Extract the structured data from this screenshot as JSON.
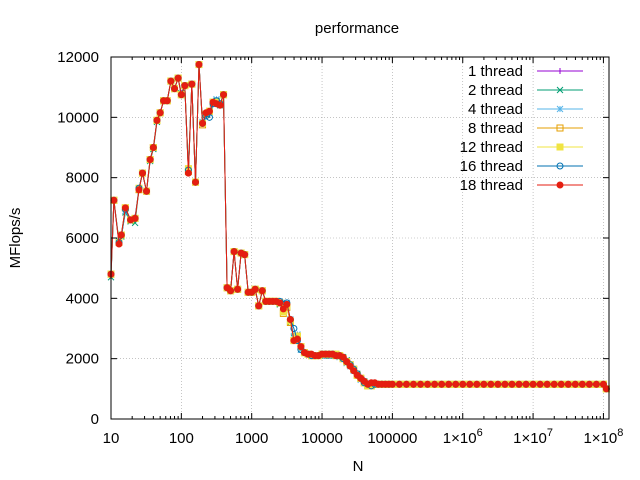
{
  "chart_data": {
    "type": "line",
    "title": "performance",
    "xlabel": "N",
    "ylabel": "MFlops/s",
    "xscale": "log",
    "xlim": [
      10,
      120000000
    ],
    "ylim": [
      0,
      12000
    ],
    "grid": true,
    "legend_position": "top-right",
    "x_ticks": [
      {
        "value": 10,
        "label": "10"
      },
      {
        "value": 100,
        "label": "100"
      },
      {
        "value": 1000,
        "label": "1000"
      },
      {
        "value": 10000,
        "label": "10000"
      },
      {
        "value": 100000,
        "label": "100000"
      },
      {
        "value": 1000000,
        "label": "1×10",
        "sup": "6"
      },
      {
        "value": 10000000,
        "label": "1×10",
        "sup": "7"
      },
      {
        "value": 100000000,
        "label": "1×10",
        "sup": "8"
      }
    ],
    "y_ticks": [
      {
        "value": 0,
        "label": "0"
      },
      {
        "value": 2000,
        "label": "2000"
      },
      {
        "value": 4000,
        "label": "4000"
      },
      {
        "value": 6000,
        "label": "6000"
      },
      {
        "value": 8000,
        "label": "8000"
      },
      {
        "value": 10000,
        "label": "10000"
      },
      {
        "value": 12000,
        "label": "12000"
      }
    ],
    "x": [
      10,
      11,
      13,
      14,
      16,
      19,
      22,
      25,
      28,
      32,
      36,
      40,
      45,
      50,
      56,
      63,
      71,
      80,
      90,
      100,
      112,
      126,
      141,
      159,
      178,
      200,
      224,
      251,
      282,
      316,
      355,
      398,
      447,
      501,
      562,
      631,
      708,
      794,
      891,
      1000,
      1122,
      1259,
      1413,
      1585,
      1778,
      1995,
      2239,
      2512,
      2818,
      3162,
      3548,
      3981,
      4467,
      5012,
      5623,
      6310,
      7079,
      7943,
      8913,
      10000,
      11220,
      12589,
      14125,
      15849,
      17783,
      19953,
      22387,
      25119,
      28184,
      31623,
      35481,
      39811,
      44668,
      50119,
      56234,
      63096,
      70795,
      79433,
      89125,
      100000,
      125893,
      158489,
      199526,
      251189,
      316228,
      398107,
      501187,
      630957,
      794328,
      1000000,
      1258925,
      1584893,
      1995262,
      2511886,
      3162278,
      3981072,
      5011872,
      6309573,
      7943282,
      10000000,
      12589254,
      15848932,
      19952623,
      25118864,
      31622777,
      39810717,
      50118723,
      63095734,
      79432823,
      100000000,
      110000000
    ],
    "series": [
      {
        "name": "1 thread",
        "color": "#9400d3",
        "marker": "plus",
        "values": [
          4750,
          7200,
          5850,
          6000,
          6950,
          6600,
          6700,
          7600,
          8150,
          7550,
          8550,
          9000,
          9900,
          10150,
          10550,
          10550,
          11200,
          10950,
          11300,
          10800,
          11050,
          8200,
          11100,
          7850,
          11750,
          9800,
          10100,
          10200,
          10500,
          10550,
          10450,
          10750,
          4350,
          4250,
          5550,
          4300,
          5500,
          5450,
          4200,
          4200,
          4300,
          3750,
          4250,
          3900,
          3900,
          3900,
          3900,
          3850,
          3650,
          3800,
          3300,
          2600,
          2800,
          2400,
          2200,
          2150,
          2150,
          2100,
          2100,
          2100,
          2100,
          2100,
          2100,
          2100,
          2100,
          2050,
          1950,
          1850,
          1700,
          1500,
          1400,
          1300,
          1200,
          1150,
          1200,
          1150,
          1150,
          1150,
          1150,
          1150,
          1150,
          1150,
          1150,
          1150,
          1150,
          1150,
          1150,
          1150,
          1150,
          1150,
          1150,
          1150,
          1150,
          1150,
          1150,
          1150,
          1150,
          1150,
          1150,
          1150,
          1150,
          1150,
          1150,
          1150,
          1150,
          1150,
          1150,
          1150,
          1150,
          1150,
          1000
        ]
      },
      {
        "name": "2 thread",
        "color": "#009e73",
        "marker": "cross",
        "values": [
          4700,
          7250,
          5900,
          6050,
          6850,
          6550,
          6500,
          7650,
          8150,
          7550,
          8550,
          8950,
          9850,
          10150,
          10550,
          10550,
          11200,
          10950,
          11300,
          10800,
          11050,
          8250,
          11100,
          7850,
          11750,
          9800,
          10100,
          10200,
          10450,
          10550,
          10400,
          10750,
          4350,
          4250,
          5550,
          4300,
          5500,
          5450,
          4200,
          4200,
          4300,
          3750,
          4250,
          3900,
          3900,
          3900,
          3900,
          3800,
          3600,
          3750,
          3200,
          2700,
          2650,
          2300,
          2200,
          2150,
          2100,
          2100,
          2100,
          2100,
          2100,
          2100,
          2100,
          2150,
          2100,
          2050,
          1950,
          1800,
          1650,
          1500,
          1350,
          1250,
          1150,
          1100,
          1150,
          1150,
          1150,
          1150,
          1150,
          1150,
          1150,
          1150,
          1150,
          1150,
          1150,
          1150,
          1150,
          1150,
          1150,
          1150,
          1150,
          1150,
          1150,
          1150,
          1150,
          1150,
          1150,
          1150,
          1150,
          1150,
          1150,
          1150,
          1150,
          1150,
          1150,
          1150,
          1150,
          1150,
          1150,
          1150,
          1000
        ]
      },
      {
        "name": "4 thread",
        "color": "#56b4e9",
        "marker": "star",
        "values": [
          4800,
          7250,
          5850,
          6100,
          6900,
          6600,
          6650,
          7650,
          8150,
          7550,
          8600,
          9000,
          9900,
          10150,
          10550,
          10550,
          11200,
          10950,
          11300,
          10750,
          11050,
          8200,
          11100,
          7850,
          11750,
          9850,
          10100,
          10150,
          10450,
          10600,
          10450,
          10750,
          4350,
          4250,
          5550,
          4300,
          5500,
          5450,
          4200,
          4200,
          4300,
          3750,
          4250,
          3900,
          3900,
          3900,
          3900,
          3850,
          3700,
          3850,
          3300,
          2750,
          2800,
          2300,
          2200,
          2150,
          2100,
          2100,
          2100,
          2100,
          2150,
          2150,
          2100,
          2150,
          2050,
          2000,
          1850,
          1750,
          1600,
          1450,
          1300,
          1200,
          1150,
          1150,
          1150,
          1150,
          1150,
          1150,
          1150,
          1150,
          1150,
          1150,
          1150,
          1150,
          1150,
          1150,
          1150,
          1150,
          1150,
          1150,
          1150,
          1150,
          1150,
          1150,
          1150,
          1150,
          1150,
          1150,
          1150,
          1150,
          1150,
          1150,
          1150,
          1150,
          1150,
          1150,
          1150,
          1150,
          1150,
          1150,
          1000
        ]
      },
      {
        "name": "8 thread",
        "color": "#e69f00",
        "marker": "open-square",
        "values": [
          4800,
          7250,
          5850,
          6100,
          7000,
          6600,
          6650,
          7600,
          8150,
          7550,
          8600,
          9000,
          9900,
          10150,
          10550,
          10550,
          11200,
          10950,
          11300,
          10750,
          11050,
          8200,
          11100,
          7850,
          11750,
          9750,
          10100,
          10200,
          10500,
          10500,
          10450,
          10750,
          4350,
          4250,
          5550,
          4300,
          5500,
          5450,
          4200,
          4200,
          4300,
          3750,
          4250,
          3900,
          3900,
          3900,
          3900,
          3850,
          3500,
          3700,
          3200,
          2600,
          2750,
          2400,
          2200,
          2150,
          2100,
          2100,
          2100,
          2150,
          2150,
          2150,
          2150,
          2100,
          2100,
          2000,
          1900,
          1800,
          1650,
          1450,
          1350,
          1200,
          1100,
          1100,
          1150,
          1150,
          1150,
          1150,
          1150,
          1150,
          1150,
          1150,
          1150,
          1150,
          1150,
          1150,
          1150,
          1150,
          1150,
          1150,
          1150,
          1150,
          1150,
          1150,
          1150,
          1150,
          1150,
          1150,
          1150,
          1150,
          1150,
          1150,
          1150,
          1150,
          1150,
          1150,
          1150,
          1150,
          1150,
          1150,
          1000
        ]
      },
      {
        "name": "12 thread",
        "color": "#f0e442",
        "marker": "filled-square",
        "values": [
          4800,
          7250,
          5850,
          6100,
          7000,
          6600,
          6650,
          7650,
          8150,
          7550,
          8600,
          9000,
          9900,
          10150,
          10550,
          10550,
          11200,
          10950,
          11300,
          10750,
          11050,
          8300,
          11100,
          7850,
          11750,
          9800,
          10100,
          10200,
          10500,
          10500,
          10450,
          10750,
          4350,
          4250,
          5550,
          4300,
          5500,
          5450,
          4200,
          4200,
          4300,
          3750,
          4250,
          3900,
          3900,
          3900,
          3900,
          3850,
          3550,
          3750,
          3250,
          2600,
          2750,
          2400,
          2200,
          2150,
          2100,
          2100,
          2100,
          2150,
          2150,
          2150,
          2150,
          2150,
          2100,
          2000,
          1900,
          1800,
          1650,
          1450,
          1350,
          1200,
          1100,
          1100,
          1150,
          1150,
          1150,
          1150,
          1150,
          1150,
          1150,
          1150,
          1150,
          1150,
          1150,
          1150,
          1150,
          1150,
          1150,
          1150,
          1150,
          1150,
          1150,
          1150,
          1150,
          1150,
          1150,
          1150,
          1150,
          1150,
          1150,
          1150,
          1150,
          1150,
          1150,
          1150,
          1150,
          1150,
          1150,
          1150,
          1000
        ]
      },
      {
        "name": "16 thread",
        "color": "#0072b2",
        "marker": "open-circle",
        "values": [
          4800,
          7250,
          5850,
          6100,
          6950,
          6600,
          6650,
          7650,
          8150,
          7550,
          8600,
          9000,
          9900,
          10150,
          10550,
          10550,
          11200,
          10950,
          11300,
          10750,
          11050,
          8250,
          11100,
          7850,
          11750,
          9800,
          10050,
          10000,
          10450,
          10550,
          10450,
          10750,
          4350,
          4250,
          5550,
          4300,
          5500,
          5450,
          4200,
          4200,
          4300,
          3750,
          4250,
          3900,
          3900,
          3900,
          3900,
          3900,
          3800,
          3850,
          3300,
          3000,
          2600,
          2300,
          2200,
          2150,
          2100,
          2100,
          2100,
          2150,
          2150,
          2150,
          2150,
          2100,
          2100,
          2000,
          1900,
          1800,
          1650,
          1500,
          1350,
          1200,
          1150,
          1100,
          1150,
          1150,
          1150,
          1150,
          1150,
          1150,
          1150,
          1150,
          1150,
          1150,
          1150,
          1150,
          1150,
          1150,
          1150,
          1150,
          1150,
          1150,
          1150,
          1150,
          1150,
          1150,
          1150,
          1150,
          1150,
          1150,
          1150,
          1150,
          1150,
          1150,
          1150,
          1150,
          1150,
          1150,
          1150,
          1150,
          1000
        ]
      },
      {
        "name": "18 thread",
        "color": "#e51e10",
        "marker": "filled-circle",
        "values": [
          4800,
          7250,
          5800,
          6100,
          7000,
          6600,
          6650,
          7600,
          8150,
          7550,
          8600,
          9000,
          9900,
          10150,
          10550,
          10550,
          11200,
          10950,
          11300,
          10750,
          11050,
          8150,
          11100,
          7850,
          11750,
          9800,
          10150,
          10200,
          10500,
          10450,
          10400,
          10750,
          4350,
          4250,
          5550,
          4300,
          5500,
          5450,
          4200,
          4200,
          4300,
          3750,
          4250,
          3900,
          3900,
          3900,
          3900,
          3850,
          3650,
          3800,
          3300,
          2600,
          2650,
          2400,
          2200,
          2150,
          2150,
          2100,
          2100,
          2150,
          2150,
          2150,
          2150,
          2100,
          2100,
          2050,
          1900,
          1750,
          1600,
          1450,
          1350,
          1250,
          1150,
          1200,
          1200,
          1150,
          1150,
          1150,
          1150,
          1150,
          1150,
          1150,
          1150,
          1150,
          1150,
          1150,
          1150,
          1150,
          1150,
          1150,
          1150,
          1150,
          1150,
          1150,
          1150,
          1150,
          1150,
          1150,
          1150,
          1150,
          1150,
          1150,
          1150,
          1150,
          1150,
          1150,
          1150,
          1150,
          1150,
          1150,
          1000
        ]
      }
    ]
  }
}
